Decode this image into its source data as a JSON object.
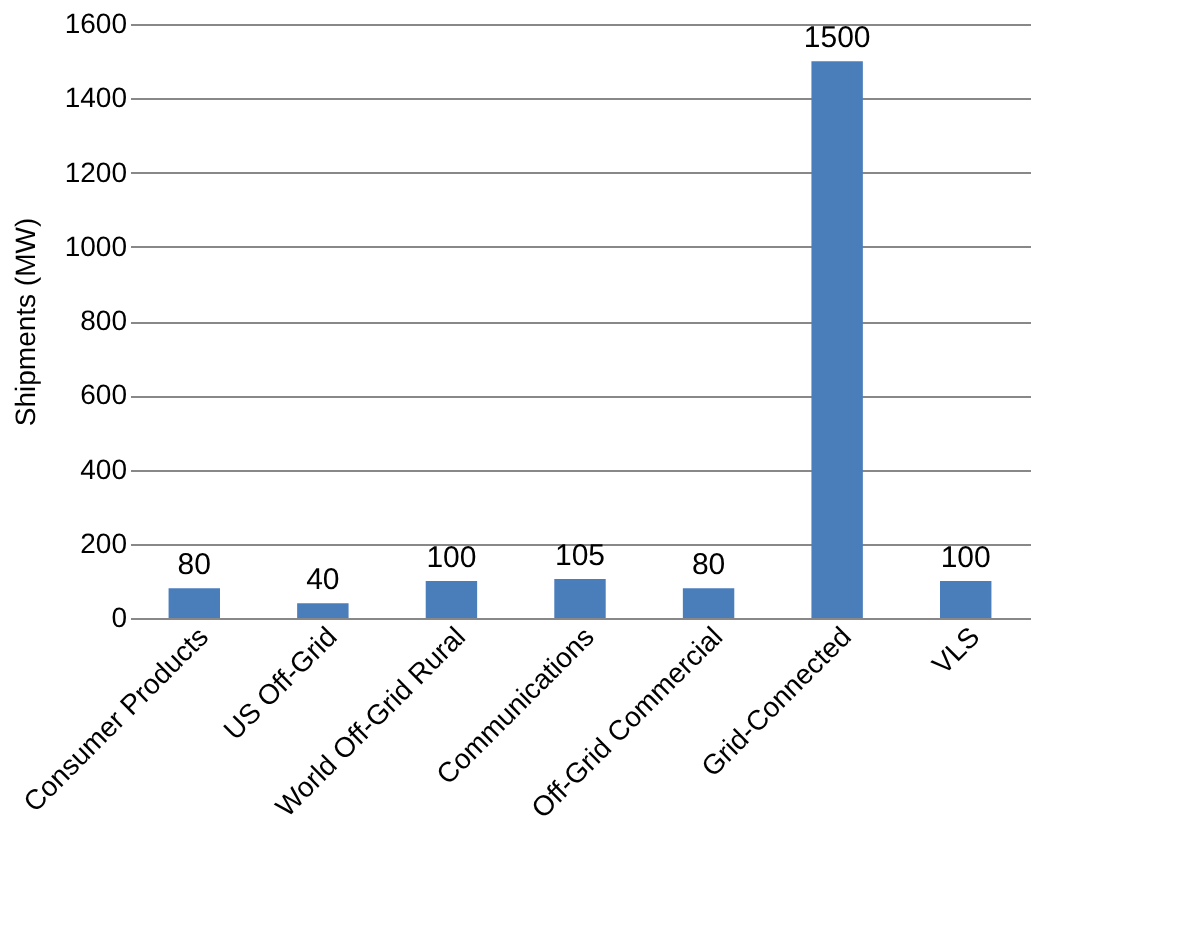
{
  "chart_data": {
    "type": "bar",
    "ylabel": "Shipments (MW)",
    "categories": [
      "Consumer Products",
      "US Off-Grid",
      "World Off-Grid Rural",
      "Communications",
      "Off-Grid Commercial",
      "Grid-Connected",
      "VLS"
    ],
    "values": [
      80,
      40,
      100,
      105,
      80,
      1500,
      100
    ],
    "color": "#4a7ebb",
    "ylim": [
      0,
      1600
    ],
    "yticks": [
      0,
      200,
      400,
      600,
      800,
      1000,
      1200,
      1400,
      1600
    ],
    "grid": "y",
    "data_labels": true
  }
}
